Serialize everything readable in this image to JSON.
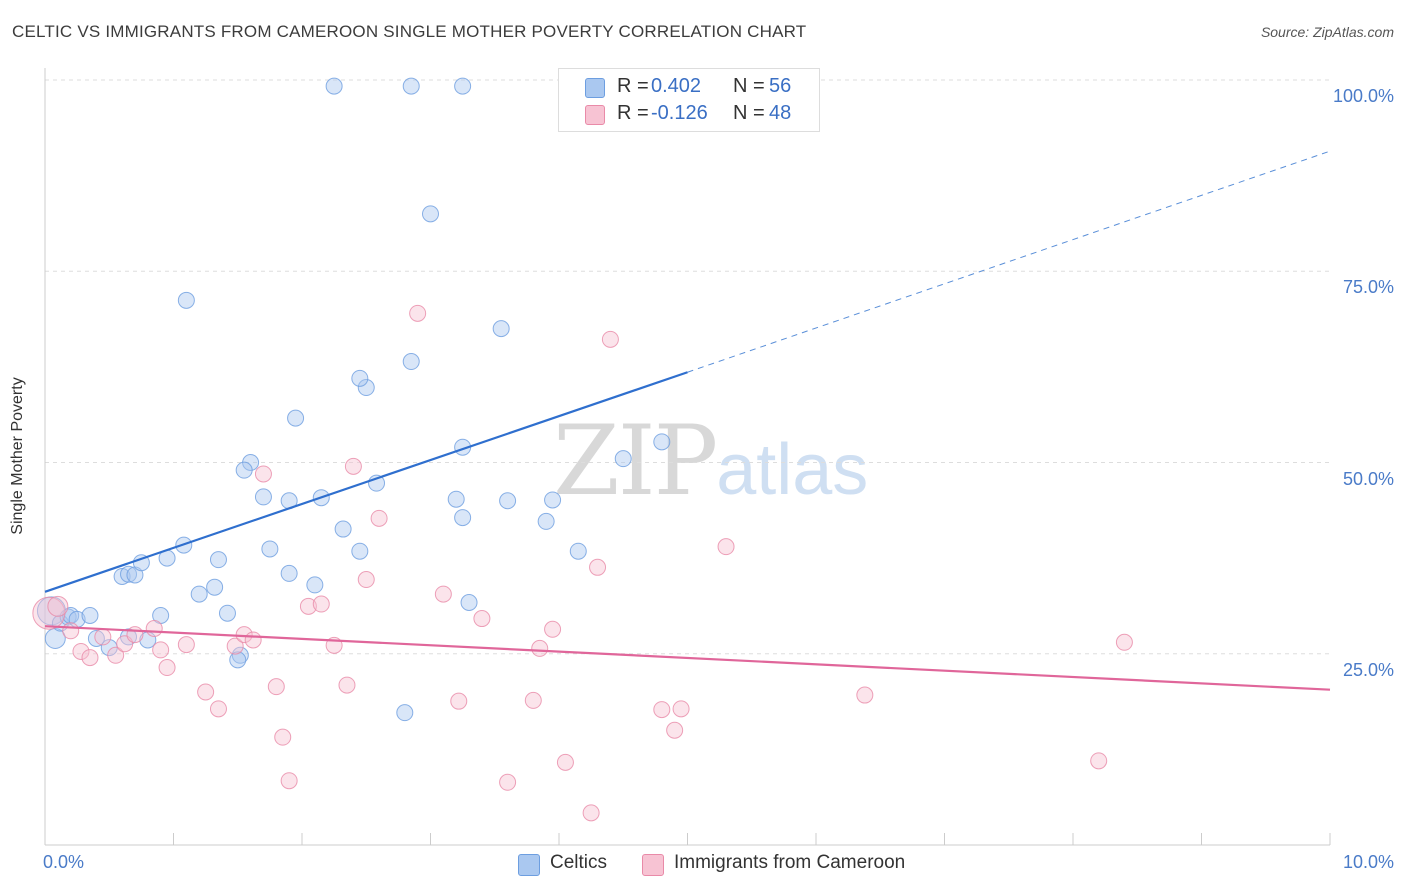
{
  "title": "CELTIC VS IMMIGRANTS FROM CAMEROON SINGLE MOTHER POVERTY CORRELATION CHART",
  "source": "Source: ZipAtlas.com",
  "watermark": {
    "zip": "ZIP",
    "atlas": "atlas"
  },
  "legend": {
    "r_label": "R =",
    "n_label": "N =",
    "rows": [
      {
        "r": "0.402",
        "n": "56",
        "color": "#aac8f0",
        "stroke": "#6d9ee0"
      },
      {
        "r": "-0.126",
        "n": "48",
        "color": "#f7c3d3",
        "stroke": "#e98aa8"
      }
    ]
  },
  "bottom_legend": [
    {
      "label": "Celtics",
      "color": "#aac8f0",
      "stroke": "#6d9ee0"
    },
    {
      "label": "Immigrants from Cameroon",
      "color": "#f7c3d3",
      "stroke": "#e98aa8"
    }
  ],
  "chart_data": {
    "type": "scatter",
    "title": "CELTIC VS IMMIGRANTS FROM CAMEROON SINGLE MOTHER POVERTY CORRELATION CHART",
    "xlabel": "",
    "ylabel": "Single Mother Poverty",
    "xlim": [
      0,
      10
    ],
    "ylim": [
      0,
      100
    ],
    "x_tick_labels": [
      "0.0%",
      "10.0%"
    ],
    "y_ticks": [
      25,
      50,
      75,
      100
    ],
    "y_tick_labels": [
      "25.0%",
      "50.0%",
      "75.0%",
      "100.0%"
    ],
    "grid": true,
    "legend_position": "top-center",
    "series": [
      {
        "name": "Celtics",
        "color": "#6d9ee0",
        "r": 0.402,
        "n": 56,
        "trend": {
          "x0": 0,
          "y0": 33.1,
          "x1": 5,
          "y1": 61.8,
          "dashed_to_x": 10,
          "dashed_to_y": 90.7
        },
        "points": [
          [
            0.05,
            30.6,
            14
          ],
          [
            0.08,
            27.0,
            10
          ],
          [
            0.12,
            29.0,
            8
          ],
          [
            0.18,
            29.8,
            8
          ],
          [
            0.2,
            30.0,
            8
          ],
          [
            0.25,
            29.5,
            8
          ],
          [
            0.35,
            30.0,
            8
          ],
          [
            0.4,
            27.0,
            8
          ],
          [
            0.5,
            25.8,
            8
          ],
          [
            0.6,
            35.1,
            8
          ],
          [
            0.65,
            35.4,
            8
          ],
          [
            0.7,
            35.3,
            8
          ],
          [
            0.75,
            36.9,
            8
          ],
          [
            0.65,
            27.2,
            8
          ],
          [
            0.8,
            26.8,
            8
          ],
          [
            0.9,
            30.0,
            8
          ],
          [
            0.95,
            37.5,
            8
          ],
          [
            1.08,
            39.2,
            8
          ],
          [
            1.2,
            32.8,
            8
          ],
          [
            1.32,
            33.7,
            8
          ],
          [
            1.42,
            30.3,
            8
          ],
          [
            1.35,
            37.3,
            8
          ],
          [
            1.1,
            71.2,
            8
          ],
          [
            1.6,
            50.0,
            8
          ],
          [
            1.7,
            45.5,
            8
          ],
          [
            1.55,
            49.0,
            8
          ],
          [
            1.9,
            45.0,
            8
          ],
          [
            1.95,
            55.8,
            8
          ],
          [
            1.75,
            38.7,
            8
          ],
          [
            1.9,
            35.5,
            8
          ],
          [
            2.15,
            45.4,
            8
          ],
          [
            2.1,
            34.0,
            8
          ],
          [
            1.52,
            24.8,
            8
          ],
          [
            1.5,
            24.2,
            8
          ],
          [
            2.8,
            17.3,
            8
          ],
          [
            2.5,
            59.8,
            8
          ],
          [
            2.45,
            61.0,
            8
          ],
          [
            2.58,
            47.3,
            8
          ],
          [
            3.25,
            52.0,
            8
          ],
          [
            3.6,
            45.0,
            8
          ],
          [
            3.9,
            42.3,
            8
          ],
          [
            2.85,
            63.2,
            8
          ],
          [
            3.55,
            67.5,
            8
          ],
          [
            3.25,
            42.8,
            8
          ],
          [
            2.32,
            41.3,
            8
          ],
          [
            2.45,
            38.4,
            8
          ],
          [
            3.2,
            45.2,
            8
          ],
          [
            3.3,
            31.7,
            8
          ],
          [
            3.95,
            45.1,
            8
          ],
          [
            4.5,
            50.5,
            8
          ],
          [
            2.85,
            99.2,
            8
          ],
          [
            2.25,
            99.2,
            8
          ],
          [
            3.25,
            99.2,
            8
          ],
          [
            3.0,
            82.5,
            8
          ],
          [
            4.8,
            52.7,
            8
          ],
          [
            4.15,
            38.4,
            8
          ]
        ]
      },
      {
        "name": "Immigrants from Cameroon",
        "color": "#e98aa8",
        "r": -0.126,
        "n": 48,
        "trend": {
          "x0": 0,
          "y0": 28.6,
          "x1": 10,
          "y1": 20.3
        },
        "points": [
          [
            0.03,
            30.3,
            16
          ],
          [
            0.1,
            31.2,
            10
          ],
          [
            0.2,
            28.0,
            8
          ],
          [
            0.28,
            25.3,
            8
          ],
          [
            0.35,
            24.5,
            8
          ],
          [
            0.45,
            27.2,
            8
          ],
          [
            0.55,
            24.8,
            8
          ],
          [
            0.62,
            26.3,
            8
          ],
          [
            0.7,
            27.5,
            8
          ],
          [
            0.85,
            28.3,
            8
          ],
          [
            0.9,
            25.5,
            8
          ],
          [
            0.95,
            23.2,
            8
          ],
          [
            1.1,
            26.2,
            8
          ],
          [
            1.25,
            20.0,
            8
          ],
          [
            1.35,
            17.8,
            8
          ],
          [
            1.48,
            26.0,
            8
          ],
          [
            1.55,
            27.5,
            8
          ],
          [
            1.62,
            26.8,
            8
          ],
          [
            1.7,
            48.5,
            8
          ],
          [
            1.8,
            20.7,
            8
          ],
          [
            1.85,
            14.1,
            8
          ],
          [
            1.9,
            8.4,
            8
          ],
          [
            2.05,
            31.2,
            8
          ],
          [
            2.15,
            31.5,
            8
          ],
          [
            2.25,
            26.1,
            8
          ],
          [
            2.35,
            20.9,
            8
          ],
          [
            2.4,
            49.5,
            8
          ],
          [
            2.5,
            34.7,
            8
          ],
          [
            2.6,
            42.7,
            8
          ],
          [
            2.9,
            69.5,
            8
          ],
          [
            3.1,
            32.8,
            8
          ],
          [
            3.22,
            18.8,
            8
          ],
          [
            3.4,
            29.6,
            8
          ],
          [
            3.6,
            8.2,
            8
          ],
          [
            3.8,
            18.9,
            8
          ],
          [
            3.85,
            25.7,
            8
          ],
          [
            3.95,
            28.2,
            8
          ],
          [
            4.05,
            10.8,
            8
          ],
          [
            4.25,
            4.2,
            8
          ],
          [
            4.3,
            36.3,
            8
          ],
          [
            4.4,
            66.1,
            8
          ],
          [
            4.8,
            17.7,
            8
          ],
          [
            4.9,
            15.0,
            8
          ],
          [
            4.95,
            17.8,
            8
          ],
          [
            5.3,
            39.0,
            8
          ],
          [
            6.38,
            19.6,
            8
          ],
          [
            8.2,
            11.0,
            8
          ],
          [
            8.4,
            26.5,
            8
          ]
        ]
      }
    ]
  }
}
